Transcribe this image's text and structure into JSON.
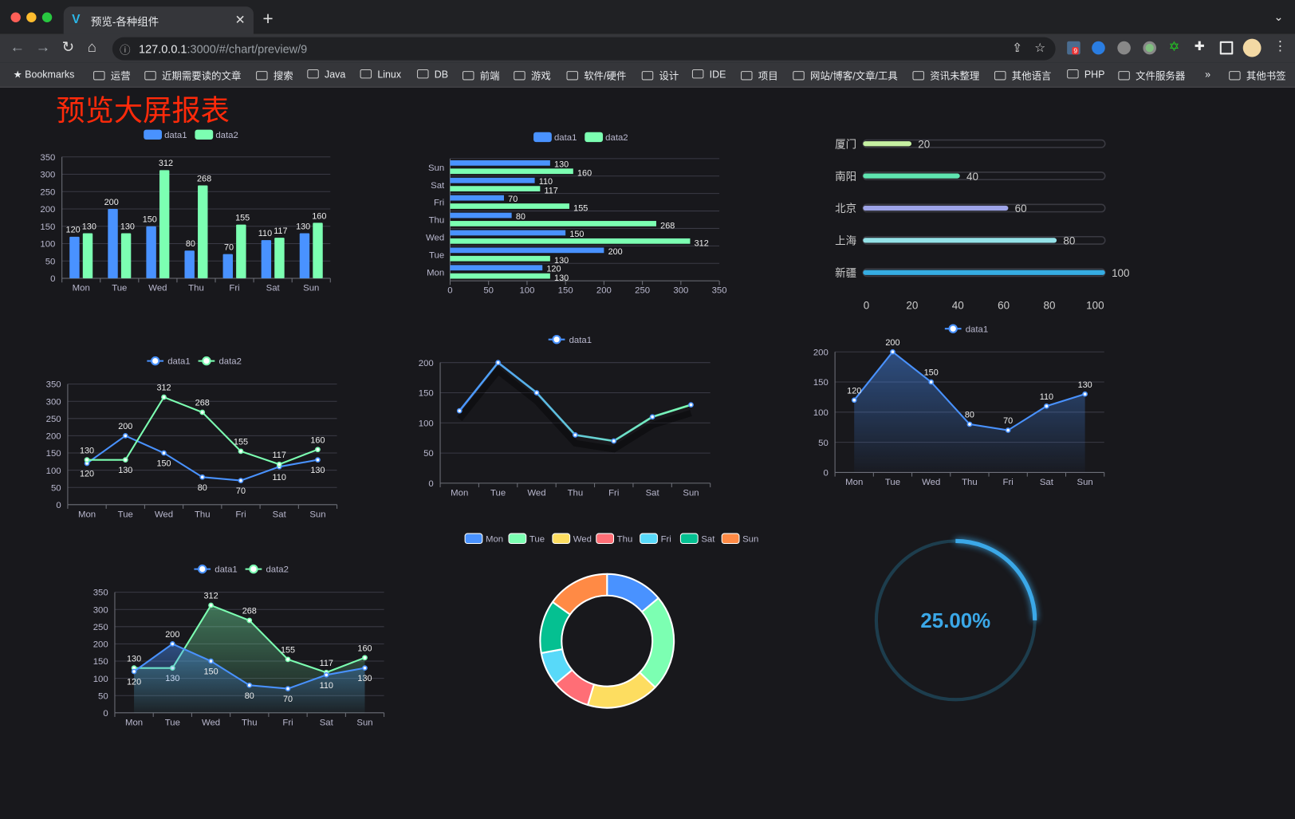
{
  "browser": {
    "tab_title": "预览-各种组件",
    "url_host": "127.0.0.1",
    "url_rest": ":3000/#/chart/preview/9",
    "extension_badge": "9",
    "bookmarks_label": "Bookmarks",
    "bookmark_folders": [
      "运营",
      "近期需要读的文章",
      "搜索",
      "Java",
      "Linux",
      "DB",
      "前端",
      "游戏",
      "软件/硬件",
      "设计",
      "IDE",
      "项目",
      "网站/博客/文章/工具",
      "资讯未整理",
      "其他语言",
      "PHP",
      "文件服务器"
    ],
    "overflow": "»",
    "other_bookmarks": "其他书签"
  },
  "page": {
    "title": "预览大屏报表"
  },
  "colors": {
    "blue": "#4992ff",
    "green": "#7cffb2",
    "yellow": "#fddd60",
    "red": "#ff6e76",
    "cyan": "#58d9f9",
    "teal": "#05c091",
    "orange": "#ff8a45",
    "title": "#ff2a0a",
    "gauge": "#3ba8e8"
  },
  "chart_data": [
    {
      "type": "bar",
      "categories": [
        "Mon",
        "Tue",
        "Wed",
        "Thu",
        "Fri",
        "Sat",
        "Sun"
      ],
      "series": [
        {
          "name": "data1",
          "values": [
            120,
            200,
            150,
            80,
            70,
            110,
            130
          ]
        },
        {
          "name": "data2",
          "values": [
            130,
            130,
            312,
            268,
            155,
            117,
            160
          ]
        }
      ],
      "ylim": [
        0,
        350
      ],
      "yticks": [
        0,
        50,
        100,
        150,
        200,
        250,
        300,
        350
      ],
      "legend": "top",
      "grid": true
    },
    {
      "type": "bar",
      "orientation": "horizontal",
      "categories": [
        "Mon",
        "Tue",
        "Wed",
        "Thu",
        "Fri",
        "Sat",
        "Sun"
      ],
      "series": [
        {
          "name": "data1",
          "values": [
            120,
            200,
            150,
            80,
            70,
            110,
            130
          ]
        },
        {
          "name": "data2",
          "values": [
            130,
            130,
            312,
            268,
            155,
            117,
            160
          ]
        }
      ],
      "xlim": [
        0,
        350
      ],
      "xticks": [
        0,
        50,
        100,
        150,
        200,
        250,
        300,
        350
      ],
      "legend": "top",
      "grid": true
    },
    {
      "type": "bar",
      "orientation": "horizontal",
      "style": "progress",
      "categories": [
        "厦门",
        "南阳",
        "北京",
        "上海",
        "新疆"
      ],
      "values": [
        20,
        40,
        60,
        80,
        100
      ],
      "colors": [
        "#c6f1a2",
        "#5fe4b0",
        "#9ea4e8",
        "#94e2e8",
        "#36ade3"
      ],
      "xlim": [
        0,
        100
      ],
      "xticks": [
        0,
        20,
        40,
        60,
        80,
        100
      ]
    },
    {
      "type": "line",
      "categories": [
        "Mon",
        "Tue",
        "Wed",
        "Thu",
        "Fri",
        "Sat",
        "Sun"
      ],
      "series": [
        {
          "name": "data1",
          "values": [
            120,
            200,
            150,
            80,
            70,
            110,
            130
          ]
        },
        {
          "name": "data2",
          "values": [
            130,
            130,
            312,
            268,
            155,
            117,
            160
          ]
        }
      ],
      "ylim": [
        0,
        350
      ],
      "yticks": [
        0,
        50,
        100,
        150,
        200,
        250,
        300,
        350
      ],
      "legend": "top",
      "grid": true
    },
    {
      "type": "line",
      "categories": [
        "Mon",
        "Tue",
        "Wed",
        "Thu",
        "Fri",
        "Sat",
        "Sun"
      ],
      "series": [
        {
          "name": "data1",
          "values": [
            120,
            200,
            150,
            80,
            70,
            110,
            130
          ]
        }
      ],
      "ylim": [
        0,
        200
      ],
      "yticks": [
        0,
        50,
        100,
        150,
        200
      ],
      "legend": "top",
      "grid": true,
      "gradient_line": true
    },
    {
      "type": "area",
      "categories": [
        "Mon",
        "Tue",
        "Wed",
        "Thu",
        "Fri",
        "Sat",
        "Sun"
      ],
      "series": [
        {
          "name": "data1",
          "values": [
            120,
            200,
            150,
            80,
            70,
            110,
            130
          ]
        }
      ],
      "ylim": [
        0,
        200
      ],
      "yticks": [
        0,
        50,
        100,
        150,
        200
      ],
      "legend": "top",
      "grid": true
    },
    {
      "type": "area",
      "categories": [
        "Mon",
        "Tue",
        "Wed",
        "Thu",
        "Fri",
        "Sat",
        "Sun"
      ],
      "series": [
        {
          "name": "data1",
          "values": [
            120,
            200,
            150,
            80,
            70,
            110,
            130
          ]
        },
        {
          "name": "data2",
          "values": [
            130,
            130,
            312,
            268,
            155,
            117,
            160
          ]
        }
      ],
      "ylim": [
        0,
        350
      ],
      "yticks": [
        0,
        50,
        100,
        150,
        200,
        250,
        300,
        350
      ],
      "legend": "top",
      "grid": true
    },
    {
      "type": "pie",
      "style": "donut",
      "categories": [
        "Mon",
        "Tue",
        "Wed",
        "Thu",
        "Fri",
        "Sat",
        "Sun"
      ],
      "values": [
        120,
        200,
        150,
        80,
        70,
        110,
        130
      ],
      "legend": "top"
    },
    {
      "type": "gauge",
      "value": 25,
      "label": "25.00%"
    }
  ]
}
